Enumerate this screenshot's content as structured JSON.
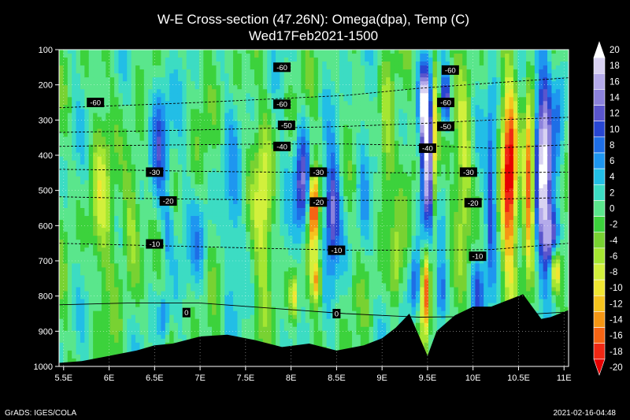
{
  "footer": {
    "left": "GrADS: IGES/COLA",
    "right": "2021-02-16-04:48"
  },
  "chart_data": {
    "type": "heatmap",
    "title": "W-E Cross-section (47.26N): Omega(dpa), Temp (C)",
    "subtitle": "Wed17Feb2021-1500",
    "xlabel": "",
    "ylabel": "",
    "x_ticks": [
      "5.5E",
      "6E",
      "6.5E",
      "7E",
      "7.5E",
      "8E",
      "8.5E",
      "9E",
      "9.5E",
      "10E",
      "10.5E",
      "11E"
    ],
    "x_tick_values": [
      5.5,
      6.0,
      6.5,
      7.0,
      7.5,
      8.0,
      8.5,
      9.0,
      9.5,
      10.0,
      10.5,
      11.0
    ],
    "y_ticks": [
      "100",
      "200",
      "300",
      "400",
      "500",
      "600",
      "700",
      "800",
      "900",
      "1000"
    ],
    "y_tick_values": [
      100,
      200,
      300,
      400,
      500,
      600,
      700,
      800,
      900,
      1000
    ],
    "xlim": [
      5.45,
      11.05
    ],
    "ylim": [
      1000,
      100
    ],
    "grid": true,
    "colorbar": {
      "labels": [
        "20",
        "18",
        "16",
        "14",
        "12",
        "10",
        "8",
        "6",
        "4",
        "2",
        "0",
        "-2",
        "-4",
        "-6",
        "-8",
        "-10",
        "-12",
        "-14",
        "-16",
        "-18",
        "-20"
      ],
      "colors": [
        "#ffffff",
        "#d9d2f2",
        "#b4aaea",
        "#8c82dc",
        "#5a55cd",
        "#2846d2",
        "#1e6ee6",
        "#1e96f0",
        "#22bee6",
        "#3cdcc3",
        "#5ae68c",
        "#3cd23c",
        "#78d232",
        "#a5e632",
        "#d2f03c",
        "#f0e632",
        "#f5c31e",
        "#f59614",
        "#f56414",
        "#f02814",
        "#e60000"
      ]
    },
    "temperature_isotherms": [
      {
        "temp": -60,
        "label": "-60",
        "pressure": [
          265,
          258,
          250,
          240,
          230,
          210,
          195,
          180
        ]
      },
      {
        "temp": -50,
        "label": "-50",
        "pressure": [
          335,
          332,
          328,
          323,
          318,
          310,
          300,
          292
        ]
      },
      {
        "temp": -40,
        "label": "-40",
        "pressure": [
          375,
          372,
          370,
          368,
          368,
          372,
          380,
          370
        ]
      },
      {
        "temp": -30,
        "label": "-30",
        "pressure": [
          440,
          442,
          446,
          448,
          449,
          450,
          450,
          448
        ]
      },
      {
        "temp": -20,
        "label": "-20",
        "pressure": [
          518,
          522,
          525,
          527,
          528,
          528,
          525,
          520
        ]
      },
      {
        "temp": -10,
        "label": "-10",
        "pressure": [
          650,
          655,
          660,
          665,
          670,
          670,
          668,
          650
        ]
      },
      {
        "temp": 0,
        "label": "0",
        "pressure": [
          825,
          820,
          820,
          835,
          850,
          860,
          858,
          845
        ]
      }
    ],
    "isotherm_x": [
      5.45,
      6.2,
      7.0,
      7.8,
      8.6,
      9.4,
      10.2,
      11.05
    ],
    "contour_labels": [
      {
        "text": "-60",
        "lon": 7.9,
        "p": 150
      },
      {
        "text": "-60",
        "lon": 9.75,
        "p": 158
      },
      {
        "text": "-60",
        "lon": 5.85,
        "p": 250
      },
      {
        "text": "-60",
        "lon": 7.9,
        "p": 255
      },
      {
        "text": "-60",
        "lon": 9.7,
        "p": 250
      },
      {
        "text": "-50",
        "lon": 7.95,
        "p": 315
      },
      {
        "text": "-50",
        "lon": 9.7,
        "p": 318
      },
      {
        "text": "-40",
        "lon": 7.9,
        "p": 375
      },
      {
        "text": "-40",
        "lon": 9.5,
        "p": 380
      },
      {
        "text": "-30",
        "lon": 6.5,
        "p": 448
      },
      {
        "text": "-30",
        "lon": 8.3,
        "p": 448
      },
      {
        "text": "-30",
        "lon": 9.95,
        "p": 448
      },
      {
        "text": "-20",
        "lon": 6.65,
        "p": 530
      },
      {
        "text": "-20",
        "lon": 8.3,
        "p": 533
      },
      {
        "text": "-20",
        "lon": 10.0,
        "p": 535
      },
      {
        "text": "-10",
        "lon": 6.5,
        "p": 652
      },
      {
        "text": "-10",
        "lon": 8.5,
        "p": 670
      },
      {
        "text": "-10",
        "lon": 10.05,
        "p": 687
      },
      {
        "text": "0",
        "lon": 6.85,
        "p": 847
      },
      {
        "text": "0",
        "lon": 8.5,
        "p": 850
      }
    ],
    "terrain_surface_pressure": {
      "lon": [
        5.45,
        5.7,
        6.0,
        6.3,
        6.5,
        6.7,
        7.0,
        7.3,
        7.6,
        7.9,
        8.2,
        8.5,
        8.8,
        9.0,
        9.15,
        9.3,
        9.4,
        9.5,
        9.6,
        9.8,
        10.0,
        10.2,
        10.4,
        10.55,
        10.65,
        10.75,
        10.85,
        11.05
      ],
      "p": [
        990,
        985,
        970,
        955,
        940,
        935,
        915,
        910,
        925,
        945,
        935,
        955,
        940,
        920,
        890,
        850,
        910,
        970,
        900,
        855,
        830,
        830,
        810,
        795,
        830,
        865,
        860,
        840
      ]
    },
    "omega_features": [
      {
        "lon": 9.5,
        "p": 420,
        "dlon": 0.08,
        "dp": 220,
        "value": 20
      },
      {
        "lon": 9.45,
        "p": 250,
        "dlon": 0.05,
        "dp": 90,
        "value": 12
      },
      {
        "lon": 9.58,
        "p": 380,
        "dlon": 0.04,
        "dp": 230,
        "value": -18
      },
      {
        "lon": 9.48,
        "p": 780,
        "dlon": 0.05,
        "dp": 130,
        "value": -20
      },
      {
        "lon": 9.35,
        "p": 780,
        "dlon": 0.06,
        "dp": 100,
        "value": 10
      },
      {
        "lon": 9.65,
        "p": 790,
        "dlon": 0.05,
        "dp": 90,
        "value": 10
      },
      {
        "lon": 9.7,
        "p": 240,
        "dlon": 0.05,
        "dp": 80,
        "value": 14
      },
      {
        "lon": 10.78,
        "p": 420,
        "dlon": 0.1,
        "dp": 280,
        "value": 20
      },
      {
        "lon": 10.88,
        "p": 650,
        "dlon": 0.08,
        "dp": 100,
        "value": 16
      },
      {
        "lon": 10.62,
        "p": 470,
        "dlon": 0.06,
        "dp": 240,
        "value": -20
      },
      {
        "lon": 10.4,
        "p": 470,
        "dlon": 0.08,
        "dp": 270,
        "value": -20
      },
      {
        "lon": 10.9,
        "p": 720,
        "dlon": 0.06,
        "dp": 70,
        "value": -18
      },
      {
        "lon": 10.2,
        "p": 500,
        "dlon": 0.05,
        "dp": 250,
        "value": 10
      },
      {
        "lon": 8.25,
        "p": 550,
        "dlon": 0.05,
        "dp": 110,
        "value": -20
      },
      {
        "lon": 8.12,
        "p": 480,
        "dlon": 0.08,
        "dp": 160,
        "value": 14
      },
      {
        "lon": 8.45,
        "p": 560,
        "dlon": 0.08,
        "dp": 150,
        "value": 14
      },
      {
        "lon": 8.28,
        "p": 760,
        "dlon": 0.05,
        "dp": 60,
        "value": -12
      },
      {
        "lon": 8.03,
        "p": 800,
        "dlon": 0.04,
        "dp": 60,
        "value": -10
      },
      {
        "lon": 6.55,
        "p": 380,
        "dlon": 0.1,
        "dp": 220,
        "value": 10
      },
      {
        "lon": 6.65,
        "p": 620,
        "dlon": 0.05,
        "dp": 80,
        "value": 6
      },
      {
        "lon": 7.0,
        "p": 650,
        "dlon": 0.1,
        "dp": 130,
        "value": 6
      },
      {
        "lon": 7.7,
        "p": 560,
        "dlon": 0.1,
        "dp": 230,
        "value": -8
      },
      {
        "lon": 6.25,
        "p": 560,
        "dlon": 0.1,
        "dp": 200,
        "value": -7
      },
      {
        "lon": 5.9,
        "p": 560,
        "dlon": 0.12,
        "dp": 240,
        "value": -6
      },
      {
        "lon": 7.35,
        "p": 540,
        "dlon": 0.1,
        "dp": 220,
        "value": 4
      },
      {
        "lon": 9.05,
        "p": 380,
        "dlon": 0.08,
        "dp": 220,
        "value": -8
      },
      {
        "lon": 8.8,
        "p": 420,
        "dlon": 0.08,
        "dp": 240,
        "value": 6
      },
      {
        "lon": 9.9,
        "p": 430,
        "dlon": 0.08,
        "dp": 220,
        "value": -8
      },
      {
        "lon": 10.05,
        "p": 780,
        "dlon": 0.07,
        "dp": 90,
        "value": 8
      },
      {
        "lon": 10.95,
        "p": 240,
        "dlon": 0.06,
        "dp": 140,
        "value": 8
      },
      {
        "lon": 6.6,
        "p": 860,
        "dlon": 0.06,
        "dp": 70,
        "value": 8
      },
      {
        "lon": 9.15,
        "p": 720,
        "dlon": 0.06,
        "dp": 120,
        "value": -8
      }
    ]
  }
}
